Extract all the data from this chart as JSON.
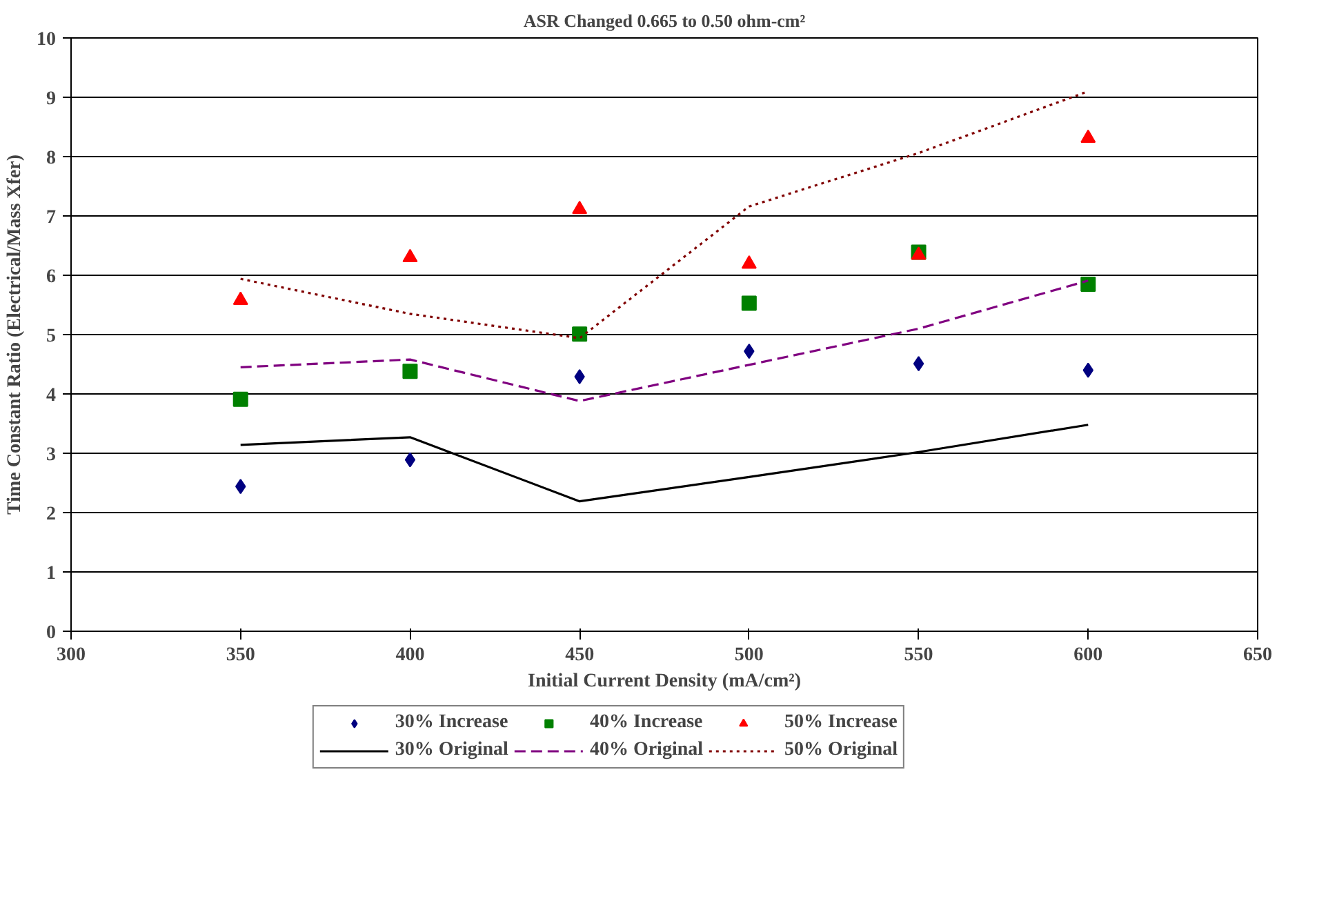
{
  "chart_data": {
    "type": "scatter",
    "title": "ASR Changed 0.665 to 0.50 ohm-cm²",
    "xlabel": "Initial Current Density (mA/cm²)",
    "ylabel": "Time Constant Ratio (Electrical/Mass Xfer)",
    "x": [
      350,
      400,
      450,
      500,
      550,
      600
    ],
    "xlim": [
      300,
      650
    ],
    "xticks": [
      300,
      350,
      400,
      450,
      500,
      550,
      600,
      650
    ],
    "ylim": [
      0,
      10
    ],
    "yticks": [
      0,
      1,
      2,
      3,
      4,
      5,
      6,
      7,
      8,
      9,
      10
    ],
    "grid": "y",
    "legend": "bottom",
    "series": [
      {
        "name": "30% Increase",
        "marker": "diamond",
        "color": "#000080",
        "values": [
          2.44,
          2.89,
          4.29,
          4.72,
          4.51,
          4.4
        ]
      },
      {
        "name": "40% Increase",
        "marker": "square",
        "color": "#008000",
        "values": [
          3.91,
          4.38,
          5.01,
          5.53,
          6.39,
          5.85
        ]
      },
      {
        "name": "50% Increase",
        "marker": "triangle",
        "color": "#ff0000",
        "values": [
          5.58,
          6.3,
          7.11,
          6.19,
          6.34,
          8.31
        ]
      },
      {
        "name": "30% Original",
        "type": "line",
        "line_style": "solid",
        "color": "#000000",
        "values": [
          3.14,
          3.27,
          2.19,
          2.6,
          3.02,
          3.48
        ]
      },
      {
        "name": "40% Original",
        "type": "line",
        "line_style": "dashed",
        "color": "#800080",
        "values": [
          4.45,
          4.58,
          3.88,
          4.49,
          5.1,
          5.91
        ]
      },
      {
        "name": "50% Original",
        "type": "line",
        "line_style": "dotted",
        "color": "#800000",
        "values": [
          5.94,
          5.35,
          4.94,
          7.16,
          8.06,
          9.1
        ]
      }
    ]
  }
}
